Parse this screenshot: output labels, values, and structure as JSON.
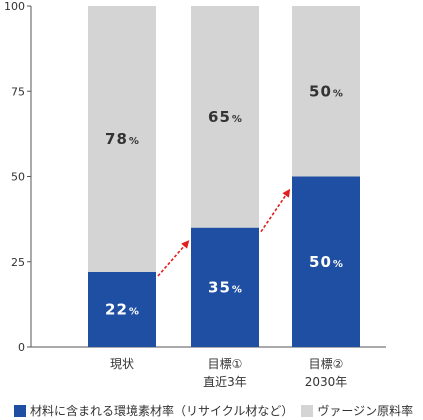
{
  "chart_data": {
    "type": "bar",
    "stacked": true,
    "categories": [
      {
        "line1": "現状",
        "line2": ""
      },
      {
        "line1": "目標①",
        "line2": "直近3年"
      },
      {
        "line1": "目標②",
        "line2": "2030年"
      }
    ],
    "series": [
      {
        "name": "材料に含まれる環境素材率（リサイクル材など）",
        "color": "#1f4fa3",
        "label_color": "#ffffff",
        "values": [
          22,
          35,
          50
        ]
      },
      {
        "name": "ヴァージン原料率",
        "color": "#d4d4d4",
        "label_color": "#333333",
        "values": [
          78,
          65,
          50
        ]
      }
    ],
    "percent_suffix": "%",
    "ylim": [
      0,
      100
    ],
    "yticks": [
      "0",
      "25",
      "50",
      "75",
      "100"
    ],
    "xlabel": "",
    "ylabel": "",
    "title": "",
    "trend_arrows": true,
    "trend_arrow_color": "#e02020",
    "legend_position": "bottom-left"
  }
}
